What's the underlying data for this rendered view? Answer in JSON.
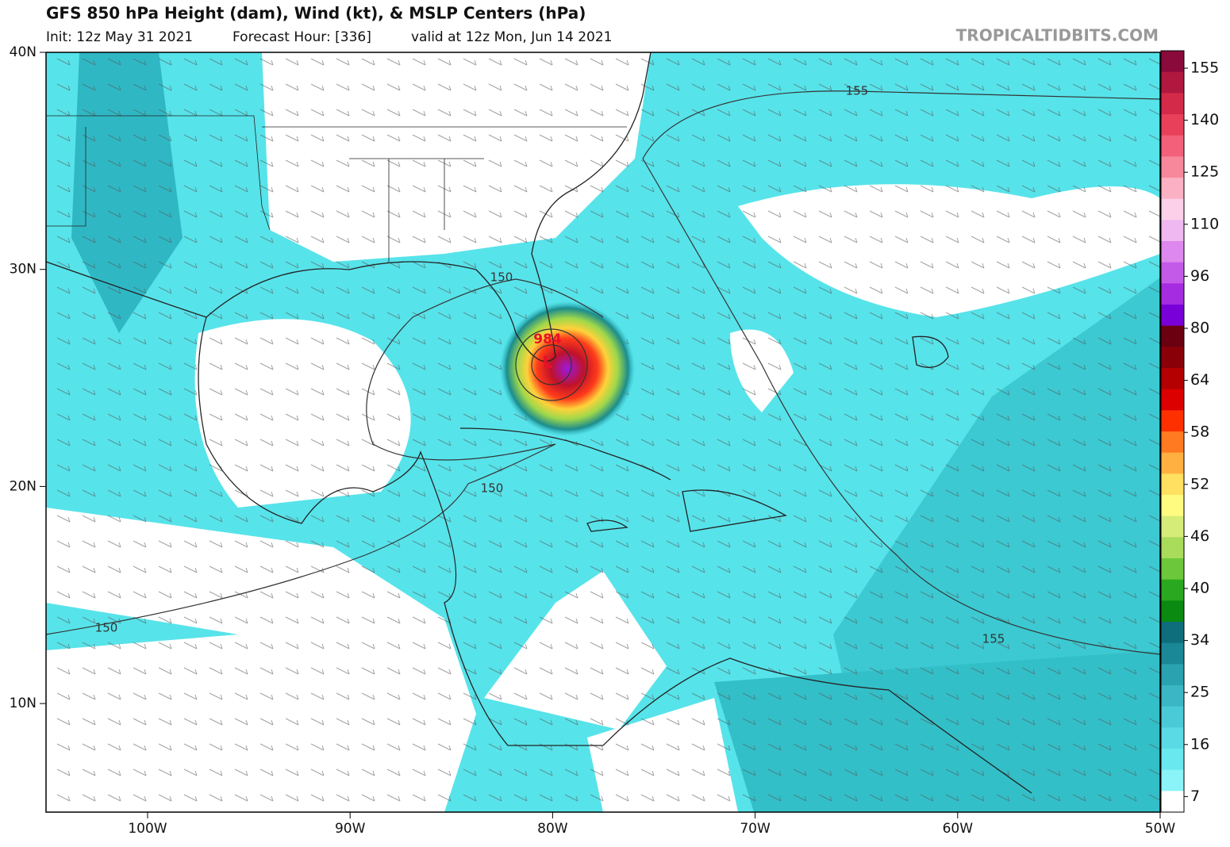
{
  "header": {
    "title": "GFS 850 hPa Height (dam), Wind (kt), & MSLP Centers (hPa)",
    "init": "Init: 12z May 31 2021",
    "forecast_hour": "Forecast Hour: [336]",
    "valid": "valid at 12z Mon, Jun 14 2021",
    "watermark": "TROPICALTIDBITS.COM"
  },
  "map": {
    "lat_labels": [
      "40N",
      "30N",
      "20N",
      "10N"
    ],
    "lon_labels": [
      "100W",
      "90W",
      "80W",
      "70W",
      "60W",
      "50W"
    ],
    "contour_labels": [
      "155",
      "150",
      "150",
      "150",
      "155"
    ],
    "low": {
      "pressure": "984",
      "symbol": "L"
    }
  },
  "colorbar": {
    "ticks": [
      155,
      140,
      125,
      110,
      96,
      80,
      64,
      58,
      52,
      46,
      40,
      34,
      25,
      16,
      7
    ]
  }
}
